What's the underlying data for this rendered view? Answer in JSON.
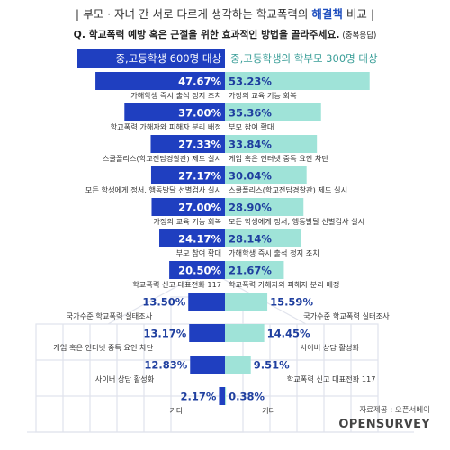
{
  "title_prefix": "| 부모 · 자녀 간 서로 다르게 생각하는 학교폭력의 ",
  "title_accent": "해결책",
  "title_suffix": " 비교 |",
  "question": "Q. 학교폭력 예방 혹은 근절을 위한 효과적인 방법을 골라주세요.",
  "question_note": "(중복응답)",
  "source": "자료제공 : 오픈서베이",
  "logo": "OPENSURVEY",
  "colors": {
    "left_bar": "#1f3fc0",
    "right_bar": "#9fe3d8",
    "right_header": "#3a9e98"
  },
  "chart_data": {
    "type": "bar",
    "series": [
      {
        "name": "중,고등학생 600명 대상",
        "values": [
          47.67,
          37.0,
          27.33,
          27.17,
          27.0,
          24.17,
          20.5,
          13.5,
          13.17,
          12.83,
          2.17
        ],
        "value_labels": [
          "47.67%",
          "37.00%",
          "27.33%",
          "27.17%",
          "27.00%",
          "24.17%",
          "20.50%",
          "13.50%",
          "13.17%",
          "12.83%",
          "2.17%"
        ],
        "categories": [
          "가해학생 즉시 출석 정지 조치",
          "학교폭력 가해자와 피해자 분리 배정",
          "스쿨폴리스(학교전담경찰관) 제도 실시",
          "모든 학생에게 정서, 행동발달 선별검사 실시",
          "가정의 교육 기능 회복",
          "부모 참여 확대",
          "학교폭력 신고 대표전화 117",
          "국가수준 학교폭력 실태조사",
          "게임 혹은 인터넷 중독 요인 차단",
          "사이버 상담 활성화",
          "기타"
        ]
      },
      {
        "name": "중,고등학생의 학부모 300명 대상",
        "values": [
          53.23,
          35.36,
          33.84,
          30.04,
          28.9,
          28.14,
          21.67,
          15.59,
          14.45,
          9.51,
          0.38
        ],
        "value_labels": [
          "53.23%",
          "35.36%",
          "33.84%",
          "30.04%",
          "28.90%",
          "28.14%",
          "21.67%",
          "15.59%",
          "14.45%",
          "9.51%",
          "0.38%"
        ],
        "categories": [
          "가정의 교육 기능 회복",
          "부모 참여 확대",
          "게임 혹은 인터넷 중독 요인 차단",
          "스쿨폴리스(학교전담경찰관) 제도 실시",
          "모든 학생에게 정서, 행동발달 선별검사 실시",
          "가해학생 즉시 출석 정지 조치",
          "학교폭력 가해자와 피해자 분리 배정",
          "국가수준 학교폭력 실태조사",
          "사이버 상담 활성화",
          "학교폭력 신고 대표전화 117",
          "기타"
        ]
      }
    ],
    "orientation": "horizontal-butterfly"
  }
}
